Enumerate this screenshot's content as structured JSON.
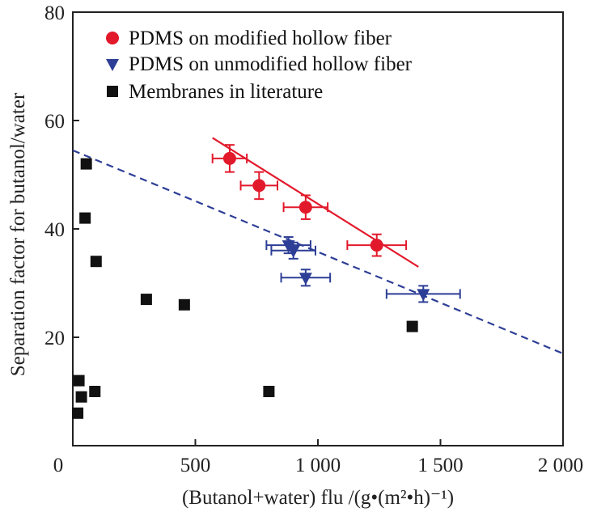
{
  "chart_data": {
    "type": "scatter",
    "title": "",
    "xlabel": "(Butanol+water) flu /(g•(m²•h)⁻¹)",
    "ylabel": "Separation factor for butanol/water",
    "xlim": [
      0,
      2000
    ],
    "ylim": [
      0,
      80
    ],
    "x_tick_labels": [
      "0",
      "500",
      "1 000",
      "1 500",
      "2 000"
    ],
    "y_tick_labels": [
      "20",
      "40",
      "60",
      "80"
    ],
    "grid": false,
    "legend_position": "top-left",
    "series": [
      {
        "name": "PDMS on modified hollow fiber",
        "marker": "circle",
        "color": "#e2192b",
        "points": [
          {
            "x": 640,
            "y": 53,
            "xerr": 70,
            "yerr": 2.5
          },
          {
            "x": 760,
            "y": 48,
            "xerr": 75,
            "yerr": 2.5
          },
          {
            "x": 950,
            "y": 44,
            "xerr": 90,
            "yerr": 2.2
          },
          {
            "x": 1240,
            "y": 37,
            "xerr": 120,
            "yerr": 2.0
          }
        ],
        "fit_line": {
          "x": [
            570,
            1410
          ],
          "y": [
            56.8,
            33.0
          ],
          "style": "solid"
        }
      },
      {
        "name": "PDMS on unmodified hollow fiber",
        "marker": "triangle-down",
        "color": "#2d3e96",
        "points": [
          {
            "x": 880,
            "y": 37,
            "xerr": 90,
            "yerr": 1.5
          },
          {
            "x": 900,
            "y": 36,
            "xerr": 90,
            "yerr": 1.5
          },
          {
            "x": 950,
            "y": 31,
            "xerr": 100,
            "yerr": 1.5
          },
          {
            "x": 1430,
            "y": 28,
            "xerr": 150,
            "yerr": 1.5
          }
        ],
        "fit_line": {
          "x": [
            0,
            2000
          ],
          "y": [
            54.5,
            17.0
          ],
          "style": "dashed"
        }
      },
      {
        "name": "Membranes in literature",
        "marker": "square",
        "color": "#111111",
        "points": [
          {
            "x": 55,
            "y": 52
          },
          {
            "x": 50,
            "y": 42
          },
          {
            "x": 95,
            "y": 34
          },
          {
            "x": 300,
            "y": 27
          },
          {
            "x": 455,
            "y": 26
          },
          {
            "x": 1385,
            "y": 22
          },
          {
            "x": 25,
            "y": 12
          },
          {
            "x": 35,
            "y": 9
          },
          {
            "x": 90,
            "y": 10
          },
          {
            "x": 800,
            "y": 10
          },
          {
            "x": 20,
            "y": 6
          }
        ]
      }
    ]
  }
}
